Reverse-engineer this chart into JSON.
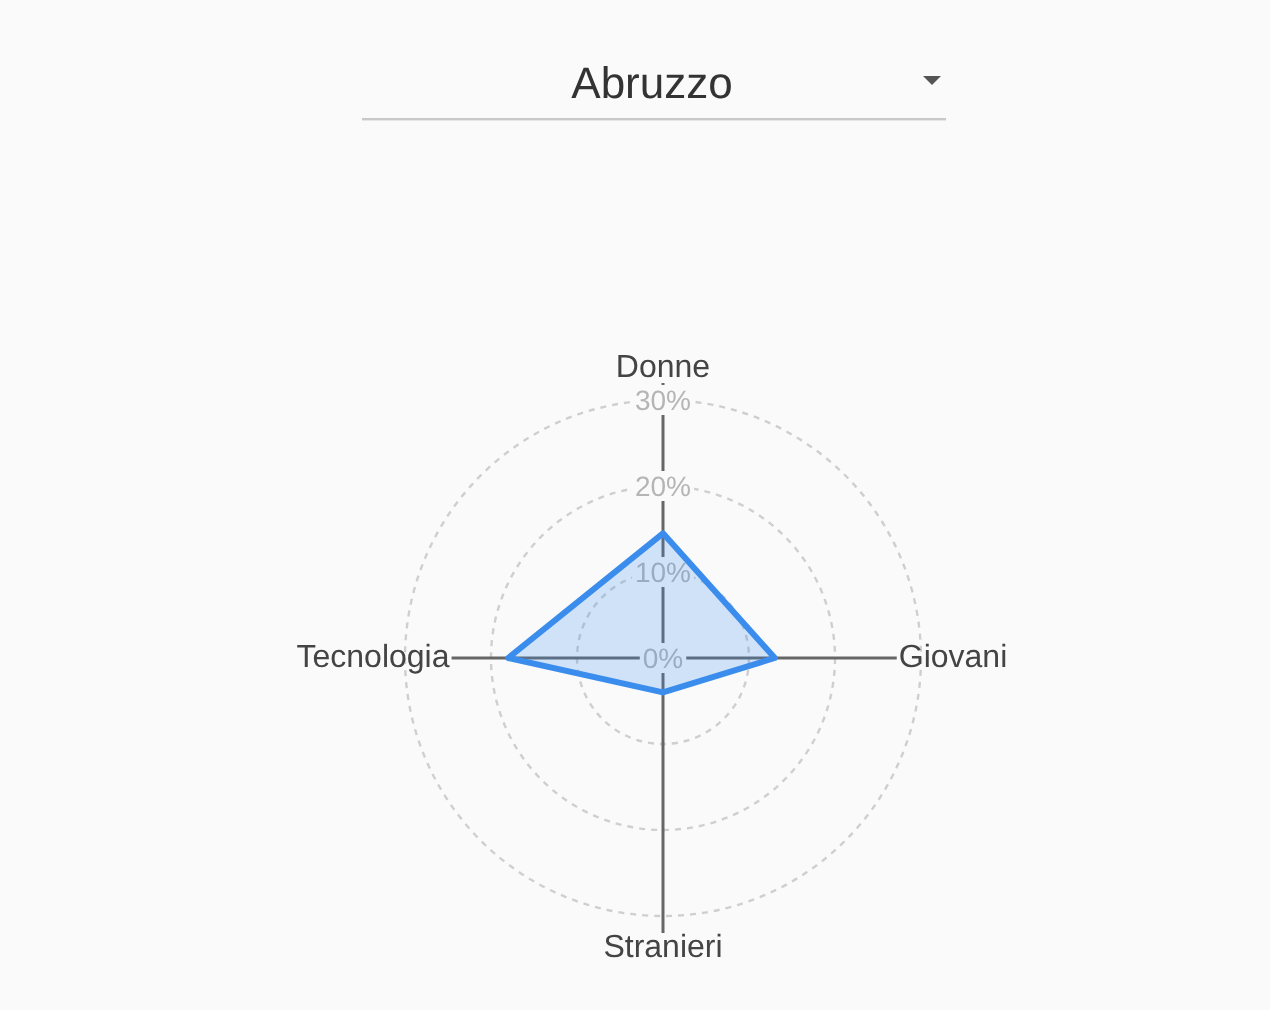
{
  "chart_data": {
    "type": "radar",
    "title": "Abruzzo",
    "categories": [
      "Donne",
      "Giovani",
      "Stranieri",
      "Tecnologia"
    ],
    "series": [
      {
        "color": "#3b8ded",
        "values": [
          14.5,
          13,
          4,
          18
        ]
      }
    ],
    "ylim": [
      0,
      30
    ],
    "yticks": [
      {
        "value": 0,
        "label": "0%"
      },
      {
        "value": 10,
        "label": "10%"
      },
      {
        "value": 20,
        "label": "20%"
      },
      {
        "value": 30,
        "label": "30%"
      }
    ],
    "grid": true
  }
}
